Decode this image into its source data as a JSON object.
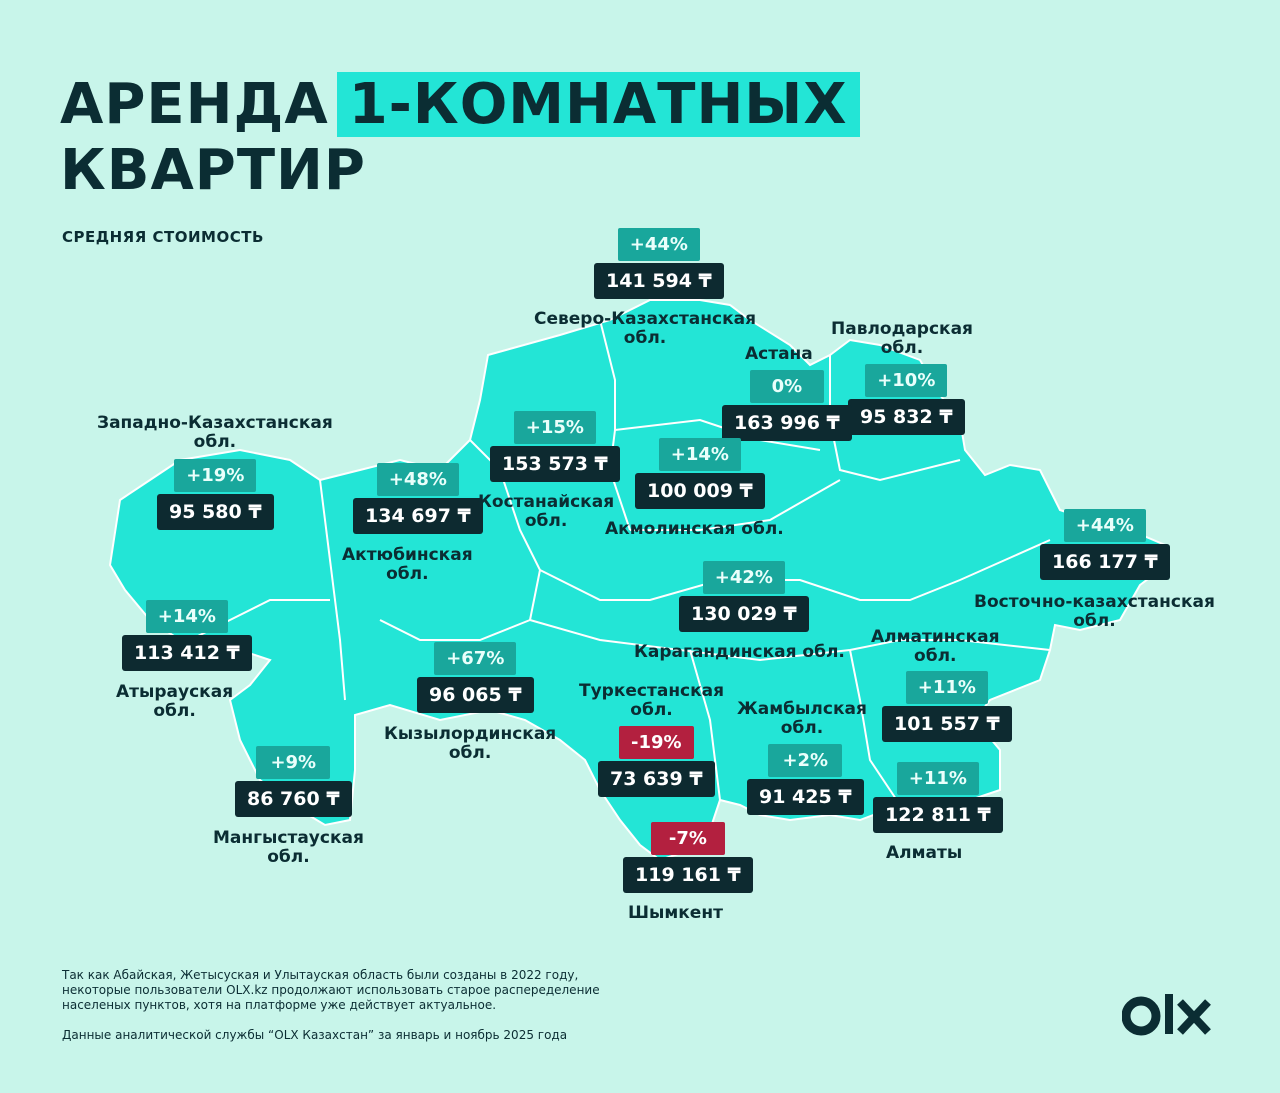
{
  "title": {
    "line1": "АРЕНДА",
    "highlight": "1-КОМНАТНЫХ",
    "line2": "КВАРТИР"
  },
  "subtitle": "СРЕДНЯЯ СТОИМОСТЬ",
  "colors": {
    "background": "#c8f5ea",
    "map": "#23e5d6",
    "pct_badge": "#19a79c",
    "neg_badge": "#b3203f",
    "price_badge": "#0d2a30"
  },
  "regions": [
    {
      "id": "sko",
      "name": "Северо-Казахстанская обл.",
      "pct": "+44%",
      "price": "141 594 ₸"
    },
    {
      "id": "pavlodar",
      "name": "Павлодарская обл.",
      "pct": "+10%",
      "price": "95 832 ₸"
    },
    {
      "id": "astana",
      "name": "Астана",
      "pct": "0%",
      "price": "163 996 ₸"
    },
    {
      "id": "wko",
      "name": "Западно-Казахстанская обл.",
      "pct": "+19%",
      "price": "95 580 ₸"
    },
    {
      "id": "kostanay",
      "name": "Костанайская обл.",
      "pct": "+15%",
      "price": "153 573 ₸"
    },
    {
      "id": "akmola",
      "name": "Акмолинская обл.",
      "pct": "+14%",
      "price": "100 009 ₸"
    },
    {
      "id": "aktobe",
      "name": "Актюбинская обл.",
      "pct": "+48%",
      "price": "134 697 ₸"
    },
    {
      "id": "vko",
      "name": "Восточно-казахстанская обл.",
      "pct": "+44%",
      "price": "166 177 ₸"
    },
    {
      "id": "karaganda",
      "name": "Карагандинская обл.",
      "pct": "+42%",
      "price": "130 029 ₸"
    },
    {
      "id": "atyrau",
      "name": "Атырауская обл.",
      "pct": "+14%",
      "price": "113 412 ₸"
    },
    {
      "id": "kyzylorda",
      "name": "Кызылординская обл.",
      "pct": "+67%",
      "price": "96 065 ₸"
    },
    {
      "id": "almaty_obl",
      "name": "Алматинская обл.",
      "pct": "+11%",
      "price": "101 557 ₸"
    },
    {
      "id": "turkestan",
      "name": "Туркестанская обл.",
      "pct": "-19%",
      "price": "73 639 ₸"
    },
    {
      "id": "zhambyl",
      "name": "Жамбылская обл.",
      "pct": "+2%",
      "price": "91 425 ₸"
    },
    {
      "id": "mangystau",
      "name": "Мангыстауская обл.",
      "pct": "+9%",
      "price": "86 760 ₸"
    },
    {
      "id": "almaty",
      "name": "Алматы",
      "pct": "+11%",
      "price": "122 811 ₸"
    },
    {
      "id": "shymkent",
      "name": "Шымкент",
      "pct": "-7%",
      "price": "119 161 ₸"
    }
  ],
  "labels": {
    "sko_1": "Северо-Казахстанская",
    "sko_2": "обл.",
    "pavlodar_1": "Павлодарская",
    "pavlodar_2": "обл.",
    "astana": "Астана",
    "wko_1": "Западно-Казахстанская",
    "wko_2": "обл.",
    "kostanay_1": "Костанайская",
    "kostanay_2": "обл.",
    "akmola": "Акмолинская обл.",
    "aktobe_1": "Актюбинская",
    "aktobe_2": "обл.",
    "vko_1": "Восточно-казахстанская",
    "vko_2": "обл.",
    "karaganda": "Карагандинская обл.",
    "atyrau_1": "Атырауская",
    "atyrau_2": "обл.",
    "kyzylorda_1": "Кызылординская",
    "kyzylorda_2": "обл.",
    "almaty_obl_1": "Алматинская",
    "almaty_obl_2": "обл.",
    "turkestan_1": "Туркестанская",
    "turkestan_2": "обл.",
    "zhambyl_1": "Жамбылская",
    "zhambyl_2": "обл.",
    "mangystau_1": "Мангыстауская",
    "mangystau_2": "обл.",
    "almaty": "Алматы",
    "shymkent": "Шымкент"
  },
  "notes": {
    "line1": "Так как Абайская, Жетысуская и Улытауская область были созданы в 2022 году,",
    "line2": "некоторые пользователи OLX.kz продолжают использовать старое распеределение",
    "line3": "населеных пунктов, хотя на платформе уже действует актуальное.",
    "source": "Данные аналитической службы “OLX Казахстан” за январь и ноябрь 2025 года"
  },
  "logo": "OLX"
}
